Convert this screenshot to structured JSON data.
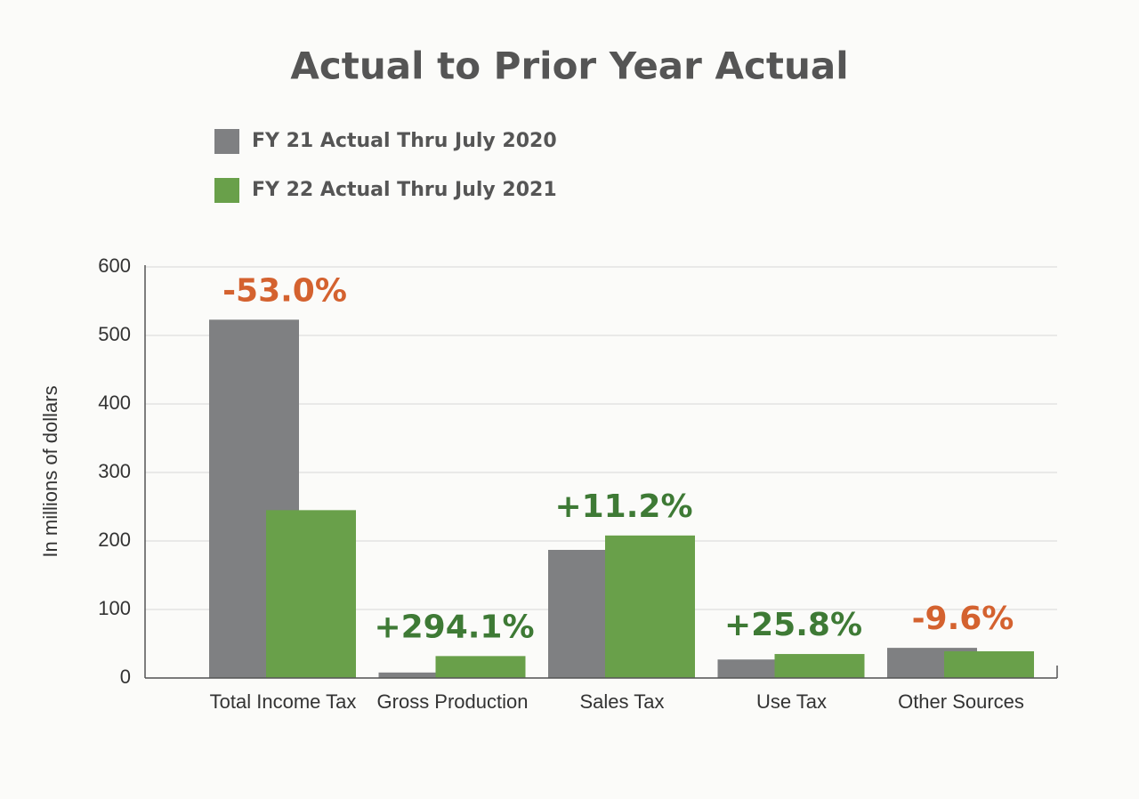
{
  "chart_data": {
    "type": "bar",
    "title": "Actual to Prior Year Actual",
    "y_label": "In millions of dollars",
    "categories": [
      "Total Income Tax",
      "Gross Production",
      "Sales Tax",
      "Use Tax",
      "Other Sources"
    ],
    "series": [
      {
        "name": "FY 21 Actual Thru July 2020",
        "color": "#7f8082",
        "values": [
          523,
          8,
          187,
          27,
          44
        ]
      },
      {
        "name": "FY 22 Actual Thru July 2021",
        "color": "#69a04a",
        "values": [
          245,
          32,
          208,
          35,
          39
        ]
      }
    ],
    "annotations": [
      {
        "text": "-53.0%",
        "color": "#d4622f"
      },
      {
        "text": "+294.1%",
        "color": "#3e7a35"
      },
      {
        "text": "+11.2%",
        "color": "#3e7a35"
      },
      {
        "text": "+25.8%",
        "color": "#3e7a35"
      },
      {
        "text": "-9.6%",
        "color": "#d4622f"
      }
    ],
    "ylim": [
      0,
      600
    ],
    "yticks": [
      0,
      100,
      200,
      300,
      400,
      500,
      600
    ],
    "grid": true
  }
}
